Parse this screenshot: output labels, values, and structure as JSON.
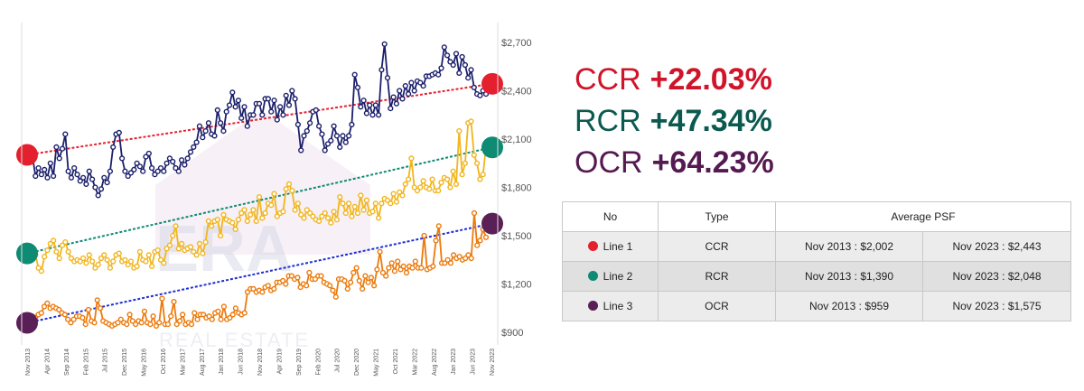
{
  "chart_data": {
    "type": "line",
    "y_ticks": [
      "$2,700",
      "$2,400",
      "$2,100",
      "$1,800",
      "$1,500",
      "$1,200",
      "$900"
    ],
    "y_tick_values": [
      2700,
      2400,
      2100,
      1800,
      1500,
      1200,
      900
    ],
    "ylim": [
      850,
      2750
    ],
    "x_tick_labels": [
      "Nov 2013",
      "Apr 2014",
      "Sep 2014",
      "Feb 2015",
      "Jul 2015",
      "Dec 2015",
      "May 2016",
      "Oct 2016",
      "Mar 2017",
      "Aug 2017",
      "Jan 2018",
      "Jun 2018",
      "Nov 2018",
      "Apr 2019",
      "Sep 2019",
      "Feb 2020",
      "Jul 2020",
      "Dec 2020",
      "May 2021",
      "Oct 2021",
      "Mar 2022",
      "Aug 2022",
      "Jan 2023",
      "Jun 2023",
      "Nov 2023"
    ],
    "x_start_month": "Nov 2013",
    "grid": false,
    "series": [
      {
        "color": "#1b1f6b",
        "values": [
          1990,
          1870,
          1920,
          1880,
          1910,
          1860,
          1950,
          1870,
          2050,
          1980,
          2040,
          2130,
          1900,
          1860,
          1920,
          1880,
          1840,
          1860,
          1820,
          1900,
          1850,
          1800,
          1750,
          1790,
          1860,
          1830,
          1900,
          2050,
          2130,
          2140,
          1980,
          1900,
          1870,
          1890,
          1910,
          1950,
          1930,
          1900,
          1990,
          2010,
          1920,
          1880,
          1900,
          1920,
          1900,
          1950,
          1980,
          1960,
          1920,
          1900,
          1970,
          1940,
          1980,
          2020,
          2050,
          2080,
          2180,
          2110,
          2150,
          2200,
          2130,
          2120,
          2280,
          2200,
          2150,
          2270,
          2310,
          2390,
          2300,
          2340,
          2230,
          2300,
          2180,
          2250,
          2250,
          2320,
          2320,
          2250,
          2350,
          2350,
          2270,
          2340,
          2220,
          2300,
          2250,
          2370,
          2310,
          2400,
          2350,
          2190,
          2030,
          2120,
          2150,
          2200,
          2270,
          2280,
          2180,
          2130,
          2030,
          2070,
          2090,
          2180,
          2120,
          2050,
          2120,
          2080,
          2120,
          2190,
          2500,
          2420,
          2300,
          2340,
          2260,
          2310,
          2250,
          2310,
          2250,
          2530,
          2690,
          2480,
          2290,
          2360,
          2320,
          2400,
          2350,
          2430,
          2380,
          2450,
          2400,
          2460,
          2450,
          2430,
          2490,
          2490,
          2500,
          2510,
          2500,
          2540,
          2670,
          2620,
          2580,
          2560,
          2630,
          2510,
          2610,
          2560,
          2480,
          2530,
          2420,
          2380,
          2370,
          2400,
          2380
        ]
      },
      {
        "color": "#f2b51c",
        "values": [
          1420,
          1380,
          1300,
          1280,
          1370,
          1410,
          1450,
          1470,
          1400,
          1360,
          1440,
          1460,
          1400,
          1360,
          1340,
          1350,
          1340,
          1360,
          1330,
          1380,
          1340,
          1300,
          1320,
          1360,
          1380,
          1350,
          1300,
          1340,
          1380,
          1390,
          1340,
          1350,
          1320,
          1340,
          1300,
          1310,
          1400,
          1350,
          1340,
          1380,
          1310,
          1400,
          1410,
          1350,
          1330,
          1420,
          1440,
          1500,
          1560,
          1420,
          1450,
          1410,
          1420,
          1430,
          1400,
          1380,
          1450,
          1390,
          1460,
          1590,
          1560,
          1590,
          1600,
          1500,
          1630,
          1600,
          1590,
          1580,
          1540,
          1600,
          1640,
          1660,
          1590,
          1630,
          1660,
          1590,
          1740,
          1610,
          1640,
          1700,
          1690,
          1760,
          1620,
          1640,
          1650,
          1790,
          1820,
          1780,
          1660,
          1700,
          1630,
          1610,
          1660,
          1640,
          1620,
          1600,
          1590,
          1620,
          1640,
          1610,
          1580,
          1650,
          1600,
          1740,
          1700,
          1640,
          1700,
          1620,
          1680,
          1640,
          1750,
          1660,
          1720,
          1640,
          1650,
          1700,
          1610,
          1700,
          1730,
          1720,
          1700,
          1760,
          1710,
          1770,
          1750,
          1820,
          1850,
          1980,
          1800,
          1780,
          1800,
          1840,
          1800,
          1790,
          1850,
          1780,
          1780,
          1830,
          1860,
          1850,
          1800,
          1900,
          1820,
          2150,
          1880,
          1950,
          2200,
          2210,
          2000,
          1950,
          1850,
          1880,
          2050
        ]
      },
      {
        "color": "#ec7a0c",
        "values": [
          1000,
          990,
          1010,
          1020,
          1060,
          1080,
          1050,
          1060,
          1050,
          1040,
          1020,
          1010,
          980,
          960,
          980,
          1000,
          1000,
          990,
          950,
          1040,
          970,
          960,
          1100,
          1050,
          970,
          960,
          950,
          940,
          950,
          960,
          980,
          960,
          950,
          1010,
          970,
          950,
          970,
          960,
          1030,
          960,
          950,
          1000,
          940,
          960,
          1110,
          950,
          950,
          1000,
          1090,
          950,
          970,
          1010,
          950,
          960,
          950,
          1020,
          980,
          1010,
          1010,
          990,
          1000,
          980,
          1020,
          1030,
          980,
          1060,
          980,
          990,
          1010,
          1050,
          1020,
          1010,
          1020,
          1150,
          1170,
          1170,
          1150,
          1160,
          1150,
          1180,
          1190,
          1160,
          1170,
          1210,
          1210,
          1220,
          1200,
          1250,
          1250,
          1230,
          1240,
          1180,
          1200,
          1190,
          1270,
          1230,
          1230,
          1250,
          1250,
          1210,
          1200,
          1190,
          1160,
          1120,
          1230,
          1230,
          1220,
          1170,
          1210,
          1270,
          1300,
          1220,
          1170,
          1250,
          1210,
          1240,
          1190,
          1290,
          1400,
          1270,
          1250,
          1300,
          1330,
          1280,
          1340,
          1290,
          1310,
          1270,
          1310,
          1300,
          1340,
          1300,
          1300,
          1500,
          1290,
          1300,
          1310,
          1470,
          1560,
          1330,
          1330,
          1350,
          1330,
          1380,
          1360,
          1370,
          1350,
          1360,
          1380,
          1360,
          1640,
          1440,
          1470,
          1540,
          1490
        ]
      }
    ],
    "trendlines": [
      {
        "color": "#e4202f",
        "start": 2002,
        "end": 2443
      },
      {
        "color": "#0f8a73",
        "start": 1390,
        "end": 2048
      },
      {
        "color": "#1f2fd1",
        "start": 959,
        "end": 1575
      }
    ],
    "endpoint_markers": [
      {
        "color": "#e4202f",
        "side": "left",
        "value": 2002
      },
      {
        "color": "#e4202f",
        "side": "right",
        "value": 2443
      },
      {
        "color": "#0f8a73",
        "side": "left",
        "value": 1390
      },
      {
        "color": "#0f8a73",
        "side": "right",
        "value": 2048
      },
      {
        "color": "#5a1f57",
        "side": "left",
        "value": 959
      },
      {
        "color": "#5a1f57",
        "side": "right",
        "value": 1575
      }
    ],
    "watermark": "ERA REAL ESTATE"
  },
  "stats": [
    {
      "label": "CCR",
      "value": "+22.03%",
      "color": "#d0142a"
    },
    {
      "label": "RCR",
      "value": "+47.34%",
      "color": "#0b5a4f"
    },
    {
      "label": "OCR",
      "value": "+64.23%",
      "color": "#551a51"
    }
  ],
  "table": {
    "headers": {
      "no": "No",
      "type": "Type",
      "avg": "Average PSF"
    },
    "rows": [
      {
        "dot_color": "#e4202f",
        "line": "Line 1",
        "type": "CCR",
        "start": "Nov 2013 : $2,002",
        "end": "Nov 2023 : $2,443"
      },
      {
        "dot_color": "#0f8a73",
        "line": "Line 2",
        "type": "RCR",
        "start": "Nov 2013 : $1,390",
        "end": "Nov 2023 : $2,048"
      },
      {
        "dot_color": "#5a1f57",
        "line": "Line 3",
        "type": "OCR",
        "start": "Nov 2013 : $959",
        "end": "Nov 2023 : $1,575"
      }
    ]
  }
}
